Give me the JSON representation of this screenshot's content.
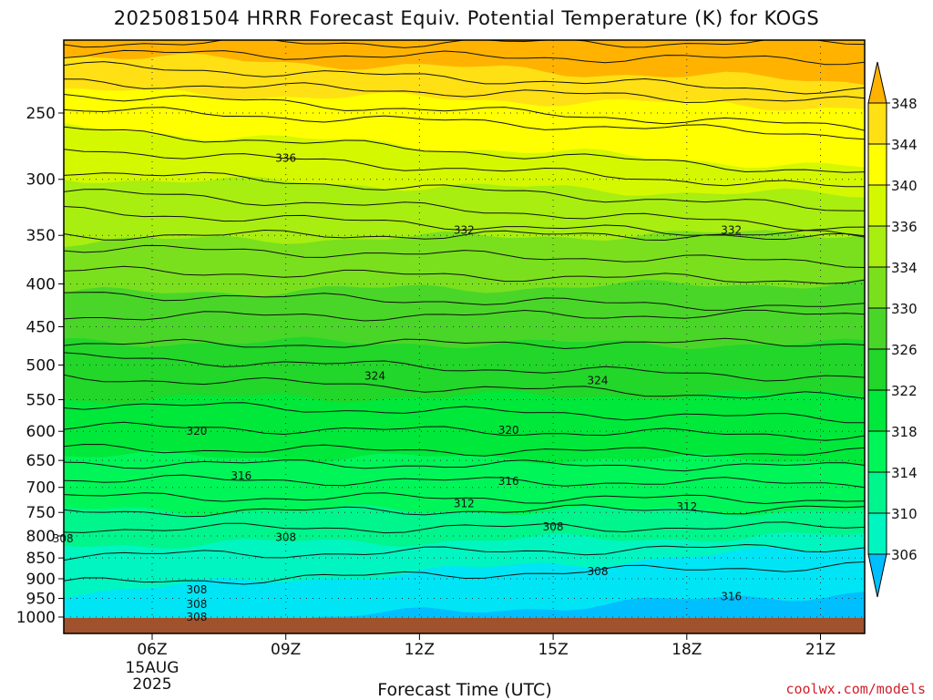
{
  "title": "2025081504 HRRR Forecast Equiv. Potential Temperature (K) for KOGS",
  "credit": "coolwx.com/models",
  "chart_data": {
    "type": "heatmap",
    "title": "2025081504 HRRR Forecast Equiv. Potential Temperature (K) for KOGS",
    "xlabel": "Forecast Time (UTC)",
    "ylabel": "",
    "x_ticks": [
      "06Z",
      "09Z",
      "12Z",
      "15Z",
      "18Z",
      "21Z"
    ],
    "x_date_label": [
      "15AUG",
      "2025"
    ],
    "y_ticks": [
      250,
      300,
      350,
      400,
      450,
      500,
      550,
      600,
      650,
      700,
      750,
      800,
      850,
      900,
      950,
      1000
    ],
    "y_axis": "pressure (reversed, log)",
    "colorbar_levels": [
      306,
      310,
      314,
      318,
      322,
      326,
      330,
      334,
      336,
      340,
      344,
      348
    ],
    "colors": {
      "c0": "#00bfff",
      "c1": "#00e5f5",
      "c2": "#00f5c0",
      "c3": "#00f58c",
      "c4": "#00f558",
      "c5": "#00e83a",
      "c6": "#22d62a",
      "c7": "#4ad628",
      "c8": "#7ae01e",
      "c9": "#a8ee10",
      "c10": "#d4f800",
      "c11": "#ffff00",
      "c12": "#ffe014",
      "c13": "#ffb300",
      "ground": "#a0522d"
    },
    "contour_labels": [
      {
        "value": 336,
        "x": "09Z",
        "p": 283
      },
      {
        "value": 332,
        "x": "13Z",
        "p": 345
      },
      {
        "value": 332,
        "x": "19Z",
        "p": 345
      },
      {
        "value": 324,
        "x": "11Z",
        "p": 515
      },
      {
        "value": 324,
        "x": "16Z",
        "p": 522
      },
      {
        "value": 320,
        "x": "07Z",
        "p": 600
      },
      {
        "value": 320,
        "x": "14Z",
        "p": 598
      },
      {
        "value": 316,
        "x": "08Z",
        "p": 678
      },
      {
        "value": 316,
        "x": "14Z",
        "p": 688
      },
      {
        "value": 316,
        "x": "19Z",
        "p": 945
      },
      {
        "value": 312,
        "x": "13Z",
        "p": 732
      },
      {
        "value": 312,
        "x": "18Z",
        "p": 738
      },
      {
        "value": 308,
        "x": "04Z",
        "p": 806
      },
      {
        "value": 308,
        "x": "09Z",
        "p": 803
      },
      {
        "value": 308,
        "x": "15Z",
        "p": 780
      },
      {
        "value": 308,
        "x": "16Z",
        "p": 882
      },
      {
        "value": 308,
        "x": "07Z",
        "p": 928
      },
      {
        "value": 308,
        "x": "07Z",
        "p": 965
      },
      {
        "value": 308,
        "x": "07Z",
        "p": 1000
      }
    ]
  }
}
